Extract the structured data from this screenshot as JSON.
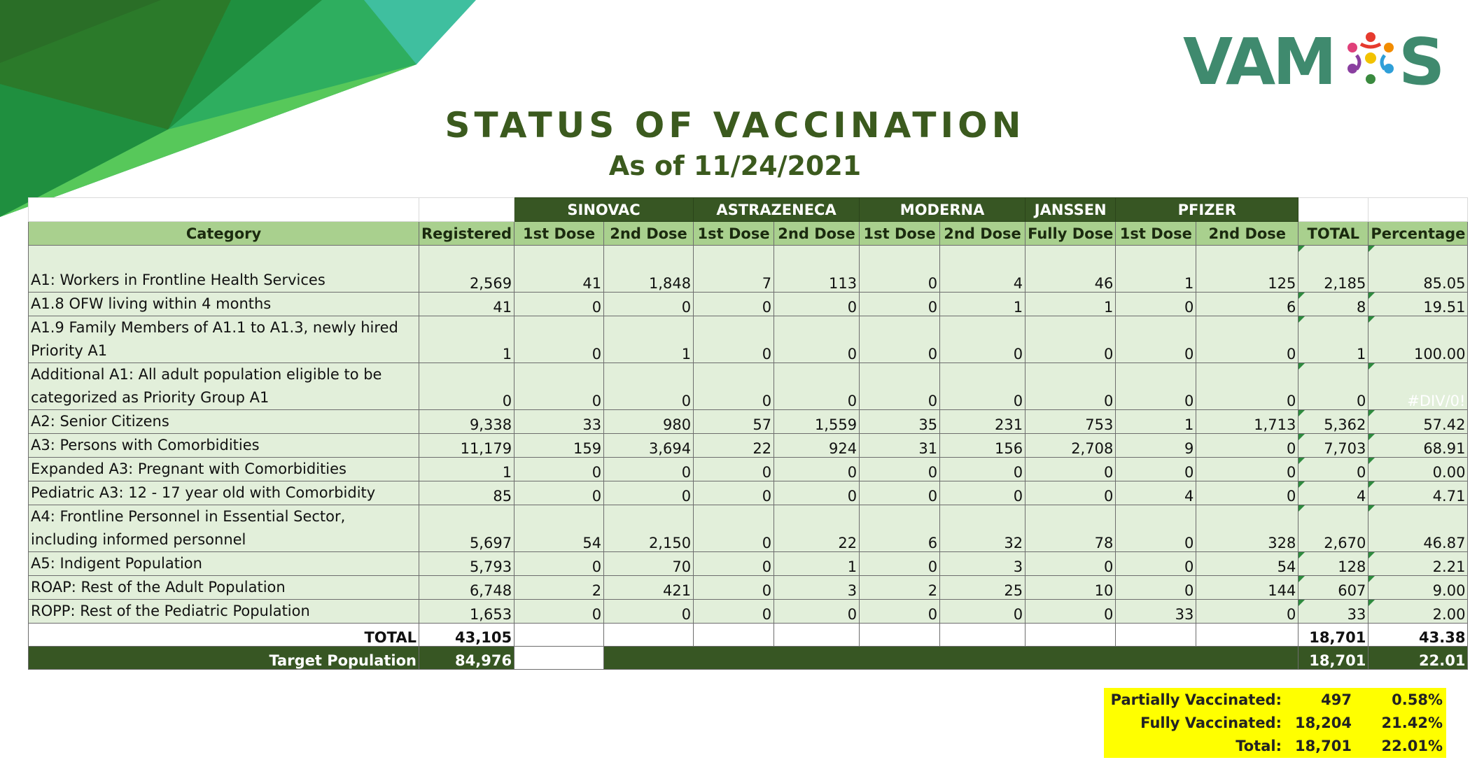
{
  "logo": {
    "text_left": "VAM",
    "text_right": "S"
  },
  "title": "STATUS OF VACCINATION",
  "subtitle": "As of 11/24/2021",
  "brands": [
    "SINOVAC",
    "ASTRAZENECA",
    "MODERNA",
    "JANSSEN",
    "PFIZER"
  ],
  "headers": [
    "Category",
    "Registered",
    "1st Dose",
    "2nd Dose",
    "1st Dose",
    "2nd Dose",
    "1st Dose",
    "2nd Dose",
    "Fully Dose",
    "1st Dose",
    "2nd Dose",
    "TOTAL",
    "Percentage"
  ],
  "rows": [
    {
      "category": "A1: Workers in Frontline Health Services",
      "registered": "2,569",
      "sinovac_1": "41",
      "sinovac_2": "1,848",
      "astra_1": "7",
      "astra_2": "113",
      "moderna_1": "0",
      "moderna_2": "4",
      "janssen": "46",
      "pfizer_1": "1",
      "pfizer_2": "125",
      "total": "2,185",
      "percentage": "85.05"
    },
    {
      "category": "A1.8 OFW living within 4 months",
      "registered": "41",
      "sinovac_1": "0",
      "sinovac_2": "0",
      "astra_1": "0",
      "astra_2": "0",
      "moderna_1": "0",
      "moderna_2": "1",
      "janssen": "1",
      "pfizer_1": "0",
      "pfizer_2": "6",
      "total": "8",
      "percentage": "19.51"
    },
    {
      "category": "A1.9 Family Members of A1.1 to A1.3, newly hired Priority A1",
      "registered": "1",
      "sinovac_1": "0",
      "sinovac_2": "1",
      "astra_1": "0",
      "astra_2": "0",
      "moderna_1": "0",
      "moderna_2": "0",
      "janssen": "0",
      "pfizer_1": "0",
      "pfizer_2": "0",
      "total": "1",
      "percentage": "100.00"
    },
    {
      "category": "Additional A1: All adult population eligible to be categorized as Priority Group A1",
      "registered": "0",
      "sinovac_1": "0",
      "sinovac_2": "0",
      "astra_1": "0",
      "astra_2": "0",
      "moderna_1": "0",
      "moderna_2": "0",
      "janssen": "0",
      "pfizer_1": "0",
      "pfizer_2": "0",
      "total": "0",
      "percentage": "#DIV/0!"
    },
    {
      "category": "A2: Senior Citizens",
      "registered": "9,338",
      "sinovac_1": "33",
      "sinovac_2": "980",
      "astra_1": "57",
      "astra_2": "1,559",
      "moderna_1": "35",
      "moderna_2": "231",
      "janssen": "753",
      "pfizer_1": "1",
      "pfizer_2": "1,713",
      "total": "5,362",
      "percentage": "57.42"
    },
    {
      "category": "A3: Persons with Comorbidities",
      "registered": "11,179",
      "sinovac_1": "159",
      "sinovac_2": "3,694",
      "astra_1": "22",
      "astra_2": "924",
      "moderna_1": "31",
      "moderna_2": "156",
      "janssen": "2,708",
      "pfizer_1": "9",
      "pfizer_2": "0",
      "total": "7,703",
      "percentage": "68.91"
    },
    {
      "category": "Expanded A3: Pregnant with Comorbidities",
      "registered": "1",
      "sinovac_1": "0",
      "sinovac_2": "0",
      "astra_1": "0",
      "astra_2": "0",
      "moderna_1": "0",
      "moderna_2": "0",
      "janssen": "0",
      "pfizer_1": "0",
      "pfizer_2": "0",
      "total": "0",
      "percentage": "0.00"
    },
    {
      "category": "Pediatric A3: 12 - 17 year old with Comorbidity",
      "registered": "85",
      "sinovac_1": "0",
      "sinovac_2": "0",
      "astra_1": "0",
      "astra_2": "0",
      "moderna_1": "0",
      "moderna_2": "0",
      "janssen": "0",
      "pfizer_1": "4",
      "pfizer_2": "0",
      "total": "4",
      "percentage": "4.71"
    },
    {
      "category": "A4: Frontline Personnel in Essential Sector, including informed personnel",
      "registered": "5,697",
      "sinovac_1": "54",
      "sinovac_2": "2,150",
      "astra_1": "0",
      "astra_2": "22",
      "moderna_1": "6",
      "moderna_2": "32",
      "janssen": "78",
      "pfizer_1": "0",
      "pfizer_2": "328",
      "total": "2,670",
      "percentage": "46.87"
    },
    {
      "category": "A5: Indigent Population",
      "registered": "5,793",
      "sinovac_1": "0",
      "sinovac_2": "70",
      "astra_1": "0",
      "astra_2": "1",
      "moderna_1": "0",
      "moderna_2": "3",
      "janssen": "0",
      "pfizer_1": "0",
      "pfizer_2": "54",
      "total": "128",
      "percentage": "2.21"
    },
    {
      "category": "ROAP: Rest of the Adult Population",
      "registered": "6,748",
      "sinovac_1": "2",
      "sinovac_2": "421",
      "astra_1": "0",
      "astra_2": "3",
      "moderna_1": "2",
      "moderna_2": "25",
      "janssen": "10",
      "pfizer_1": "0",
      "pfizer_2": "144",
      "total": "607",
      "percentage": "9.00"
    },
    {
      "category": "ROPP: Rest of the Pediatric Population",
      "registered": "1,653",
      "sinovac_1": "0",
      "sinovac_2": "0",
      "astra_1": "0",
      "astra_2": "0",
      "moderna_1": "0",
      "moderna_2": "0",
      "janssen": "0",
      "pfizer_1": "33",
      "pfizer_2": "0",
      "total": "33",
      "percentage": "2.00"
    }
  ],
  "total_row": {
    "label": "TOTAL",
    "registered": "43,105",
    "total": "18,701",
    "percentage": "43.38"
  },
  "target_row": {
    "label": "Target Population",
    "registered": "84,976",
    "total": "18,701",
    "percentage": "22.01"
  },
  "summary": [
    {
      "label": "Partially Vaccinated:",
      "count": "497",
      "percent": "0.58%"
    },
    {
      "label": "Fully Vaccinated:",
      "count": "18,204",
      "percent": "21.42%"
    },
    {
      "label": "Total:",
      "count": "18,701",
      "percent": "22.01%"
    }
  ],
  "colors": {
    "dark_green": "#375623",
    "header_green": "#a9d08e",
    "row_green": "#e2efda",
    "highlight": "#ffff00"
  }
}
